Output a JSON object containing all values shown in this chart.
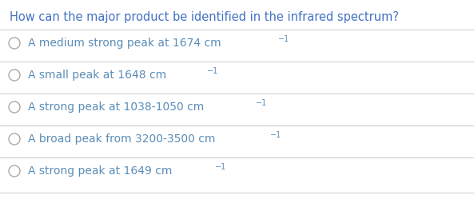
{
  "title": "How can the major product be identified in the infrared spectrum?",
  "title_color": "#4472C4",
  "title_fontsize": 10.5,
  "option_color": "#5B8DB8",
  "option_fontsize": 10.0,
  "circle_color": "#aaaaaa",
  "line_color": "#d0d0d0",
  "bg_color": "#ffffff",
  "main_texts": [
    "A medium strong peak at 1674 cm",
    "A small peak at 1648 cm",
    "A strong peak at 1038-1050 cm",
    "A broad peak from 3200-3500 cm",
    "A strong peak at 1649 cm"
  ]
}
